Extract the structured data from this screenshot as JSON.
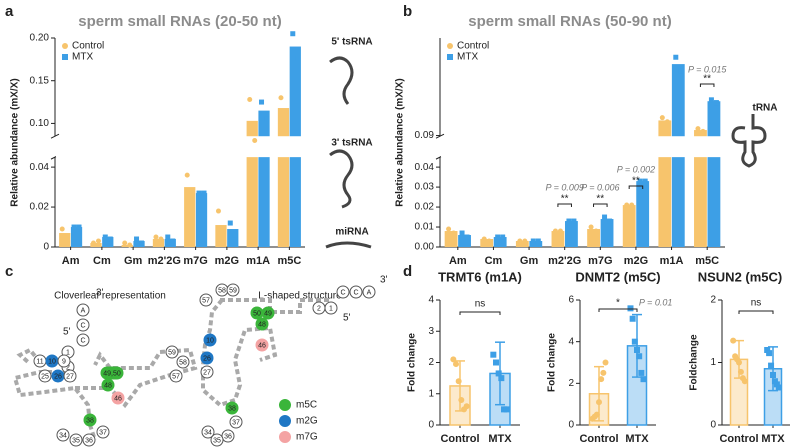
{
  "chart_data": [
    {
      "type": "bar",
      "panel_label": "a",
      "title": "sperm small RNAs (20-50 nt)",
      "y_label": "Relative abundance (mX/X)",
      "categories": [
        "Am",
        "Cm",
        "Gm",
        "m2'2G",
        "m7G",
        "m2G",
        "m1A",
        "m5C"
      ],
      "series": [
        {
          "name": "Control",
          "color": "#f7c46c",
          "marker": "circle",
          "values": [
            0.007,
            0.002,
            0.001,
            0.004,
            0.03,
            0.011,
            0.103,
            0.118
          ],
          "points": [
            [
              0.009,
              0.005
            ],
            [
              0.002,
              0.003
            ],
            [
              0.002,
              0.001
            ],
            [
              0.005,
              0.004
            ],
            [
              0.036,
              0.025
            ],
            [
              0.018,
              0.004
            ],
            [
              0.128,
              0.08
            ],
            [
              0.13,
              0.107
            ]
          ]
        },
        {
          "name": "MTX",
          "color": "#3d9fe6",
          "marker": "square",
          "values": [
            0.01,
            0.005,
            0.003,
            0.004,
            0.027,
            0.009,
            0.115,
            0.19
          ],
          "points": [
            [
              0.01,
              0.01
            ],
            [
              0.005,
              0.004
            ],
            [
              0.004,
              0.002
            ],
            [
              0.005,
              0.003
            ],
            [
              0.027,
              0.027
            ],
            [
              0.012,
              0.006
            ],
            [
              0.125,
              0.105
            ],
            [
              0.205,
              0.176
            ]
          ]
        }
      ],
      "ylim": [
        0,
        0.2
      ],
      "ybreak": [
        0.045,
        0.085
      ],
      "yticks": [
        0,
        0.02,
        0.04,
        {
          "value": 0.1,
          "label": "0.10"
        },
        0.15,
        {
          "value": 0.2,
          "label": "0.20"
        }
      ],
      "side_labels": [
        "5' tsRNA",
        "3' tsRNA",
        "miRNA"
      ]
    },
    {
      "type": "bar",
      "panel_label": "b",
      "title": "sperm small RNAs (50-90 nt)",
      "y_label": "Relative abundance (mX/X)",
      "categories": [
        "Am",
        "Cm",
        "Gm",
        "m2'2G",
        "m7G",
        "m2G",
        "m1A",
        "m5C"
      ],
      "series": [
        {
          "name": "Control",
          "color": "#f7c46c",
          "marker": "circle",
          "values": [
            0.008,
            0.004,
            0.003,
            0.008,
            0.009,
            0.021,
            0.2,
            0.13
          ],
          "points": [
            [
              0.009,
              0.007
            ],
            [
              0.004,
              0.003
            ],
            [
              0.003,
              0.003
            ],
            [
              0.008,
              0.008
            ],
            [
              0.01,
              0.008
            ],
            [
              0.021,
              0.021
            ],
            [
              0.22,
              0.19
            ],
            [
              0.14,
              0.12
            ]
          ]
        },
        {
          "name": "MTX",
          "color": "#3d9fe6",
          "marker": "square",
          "values": [
            0.006,
            0.005,
            0.003,
            0.013,
            0.014,
            0.033,
            0.61,
            0.34
          ],
          "points": [
            [
              0.007,
              0.005
            ],
            [
              0.005,
              0.005
            ],
            [
              0.003,
              0.003
            ],
            [
              0.013,
              0.013
            ],
            [
              0.015,
              0.013
            ],
            [
              0.033,
              0.033
            ],
            [
              0.66,
              0.56
            ],
            [
              0.35,
              0.33
            ]
          ]
        }
      ],
      "ylim": [
        0,
        0.8
      ],
      "ybreak": [
        0.045,
        0.085
      ],
      "yticks": [
        {
          "value": 0,
          "label": "0.00"
        },
        0.01,
        0.02,
        0.03,
        0.04,
        0.09
      ],
      "annotations": [
        "P = 0.009",
        "**",
        "P = 0.006",
        "**",
        "P = 0.002",
        "**",
        "P = 0.015",
        "**"
      ],
      "side_labels": [
        "tRNA"
      ]
    },
    {
      "type": "bar",
      "panel_label": "d",
      "title": "TRMT6 (m1A)",
      "y_label": "Fold change",
      "categories": [
        "Control",
        "MTX"
      ],
      "colors": [
        "#f7c46c",
        "#3d9fe6"
      ],
      "markers": [
        "circle",
        "square"
      ],
      "values": [
        1.25,
        1.65
      ],
      "errors": [
        0.8,
        1.0
      ],
      "points": [
        [
          2.1,
          1.95,
          1.4,
          0.8,
          0.5,
          0.6
        ],
        [
          2.25,
          2.0,
          1.65,
          1.5,
          0.5,
          0.5
        ]
      ],
      "ylim": [
        0,
        4
      ],
      "yticks": [
        0,
        1,
        2,
        3,
        4
      ],
      "annotations": [
        "ns"
      ]
    },
    {
      "type": "bar",
      "title": "DNMT2 (m5C)",
      "y_label": "Fold change",
      "categories": [
        "Control",
        "MTX"
      ],
      "colors": [
        "#f7c46c",
        "#3d9fe6"
      ],
      "markers": [
        "circle",
        "square"
      ],
      "values": [
        1.5,
        3.8
      ],
      "errors": [
        1.3,
        1.5
      ],
      "points": [
        [
          0.3,
          0.4,
          0.5,
          1.1,
          2.2,
          2.5,
          3.0
        ],
        [
          5.6,
          5.1,
          4.0,
          3.6,
          3.3,
          2.5,
          2.2
        ]
      ],
      "ylim": [
        0,
        6
      ],
      "yticks": [
        0,
        2,
        4,
        6
      ],
      "annotations": [
        "*",
        "P = 0.01"
      ]
    },
    {
      "type": "bar",
      "title": "NSUN2 (m5C)",
      "y_label": "Foldchange",
      "categories": [
        "Control",
        "MTX"
      ],
      "colors": [
        "#f7c46c",
        "#3d9fe6"
      ],
      "markers": [
        "circle",
        "square"
      ],
      "values": [
        1.05,
        0.9
      ],
      "errors": [
        0.3,
        0.35
      ],
      "points": [
        [
          1.35,
          1.1,
          1.05,
          1.0,
          0.85,
          0.75,
          0.7
        ],
        [
          1.2,
          1.15,
          0.95,
          0.8,
          0.7,
          0.65,
          0.6
        ]
      ],
      "ylim": [
        0,
        2
      ],
      "yticks": [
        0,
        1,
        2
      ],
      "annotations": [
        "ns"
      ]
    }
  ],
  "diagram": {
    "panel_label": "c",
    "titles": [
      "Cloverleaf representation",
      "L-shaped structure"
    ],
    "end_labels": [
      "3'",
      "5'",
      "3'",
      "5'"
    ],
    "nodes": [
      {
        "label": "A"
      },
      {
        "label": "C"
      },
      {
        "label": "C"
      },
      {
        "label": "1"
      },
      {
        "label": "2"
      },
      {
        "label": "11"
      },
      {
        "label": "10",
        "color": "#1f77c4"
      },
      {
        "label": "9"
      },
      {
        "label": "25"
      },
      {
        "label": "26",
        "color": "#1f77c4"
      },
      {
        "label": "27"
      },
      {
        "label": "49,50",
        "color": "#3ab53a"
      },
      {
        "label": "48",
        "color": "#3ab53a"
      },
      {
        "label": "46",
        "color": "#f4a3a3"
      },
      {
        "label": "59"
      },
      {
        "label": "58"
      },
      {
        "label": "57"
      },
      {
        "label": "38",
        "color": "#3ab53a"
      },
      {
        "label": "37"
      },
      {
        "label": "34"
      },
      {
        "label": "35"
      },
      {
        "label": "36"
      },
      {
        "label": "58"
      },
      {
        "label": "59"
      },
      {
        "label": "57"
      },
      {
        "label": "C"
      },
      {
        "label": "C"
      },
      {
        "label": "A"
      },
      {
        "label": "2"
      },
      {
        "label": "1"
      },
      {
        "label": "50",
        "color": "#3ab53a"
      },
      {
        "label": "49",
        "color": "#3ab53a"
      },
      {
        "label": "48",
        "color": "#3ab53a"
      },
      {
        "label": "46",
        "color": "#f4a3a3"
      },
      {
        "label": "10",
        "color": "#1f77c4"
      },
      {
        "label": "26",
        "color": "#1f77c4"
      },
      {
        "label": "27"
      },
      {
        "label": "38",
        "color": "#3ab53a"
      },
      {
        "label": "37"
      },
      {
        "label": "36"
      },
      {
        "label": "35"
      },
      {
        "label": "34"
      }
    ],
    "legend": [
      {
        "label": "m5C",
        "color": "#3ab53a"
      },
      {
        "label": "m2G",
        "color": "#1f77c4"
      },
      {
        "label": "m7G",
        "color": "#f4a3a3"
      }
    ]
  }
}
